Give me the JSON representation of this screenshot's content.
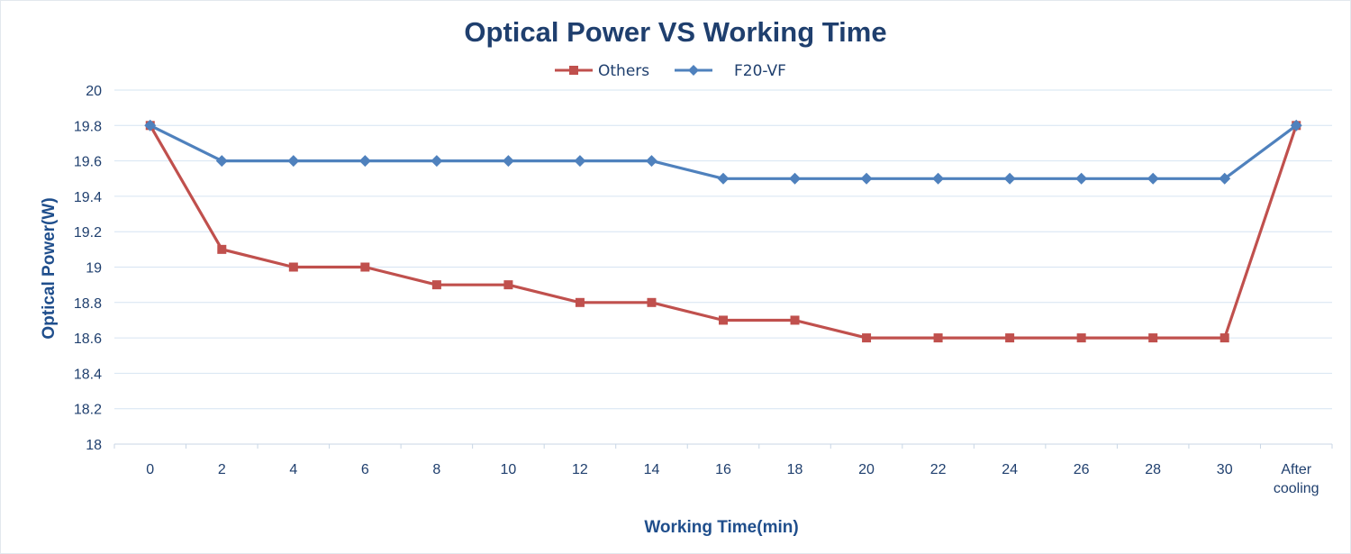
{
  "chart_data": {
    "type": "line",
    "title": "Optical Power VS Working Time",
    "xlabel": "Working Time(min)",
    "ylabel": "Optical Power(W)",
    "categories": [
      "0",
      "2",
      "4",
      "6",
      "8",
      "10",
      "12",
      "14",
      "16",
      "18",
      "20",
      "22",
      "24",
      "26",
      "28",
      "30",
      "After cooling"
    ],
    "ylim": [
      18,
      20
    ],
    "yticks": [
      "20",
      "19.8",
      "19.6",
      "19.4",
      "19.2",
      "19",
      "18.8",
      "18.6",
      "18.4",
      "18.2",
      "18"
    ],
    "grid": true,
    "legend_position": "top-center",
    "series": [
      {
        "name": "Others",
        "color": "#c0504d",
        "marker": "square",
        "values": [
          19.8,
          19.1,
          19.0,
          19.0,
          18.9,
          18.9,
          18.8,
          18.8,
          18.7,
          18.7,
          18.6,
          18.6,
          18.6,
          18.6,
          18.6,
          18.6,
          19.8
        ]
      },
      {
        "name": "F20-VF",
        "color": "#4f81bd",
        "marker": "diamond",
        "values": [
          19.8,
          19.6,
          19.6,
          19.6,
          19.6,
          19.6,
          19.6,
          19.6,
          19.5,
          19.5,
          19.5,
          19.5,
          19.5,
          19.5,
          19.5,
          19.5,
          19.8
        ]
      }
    ]
  }
}
